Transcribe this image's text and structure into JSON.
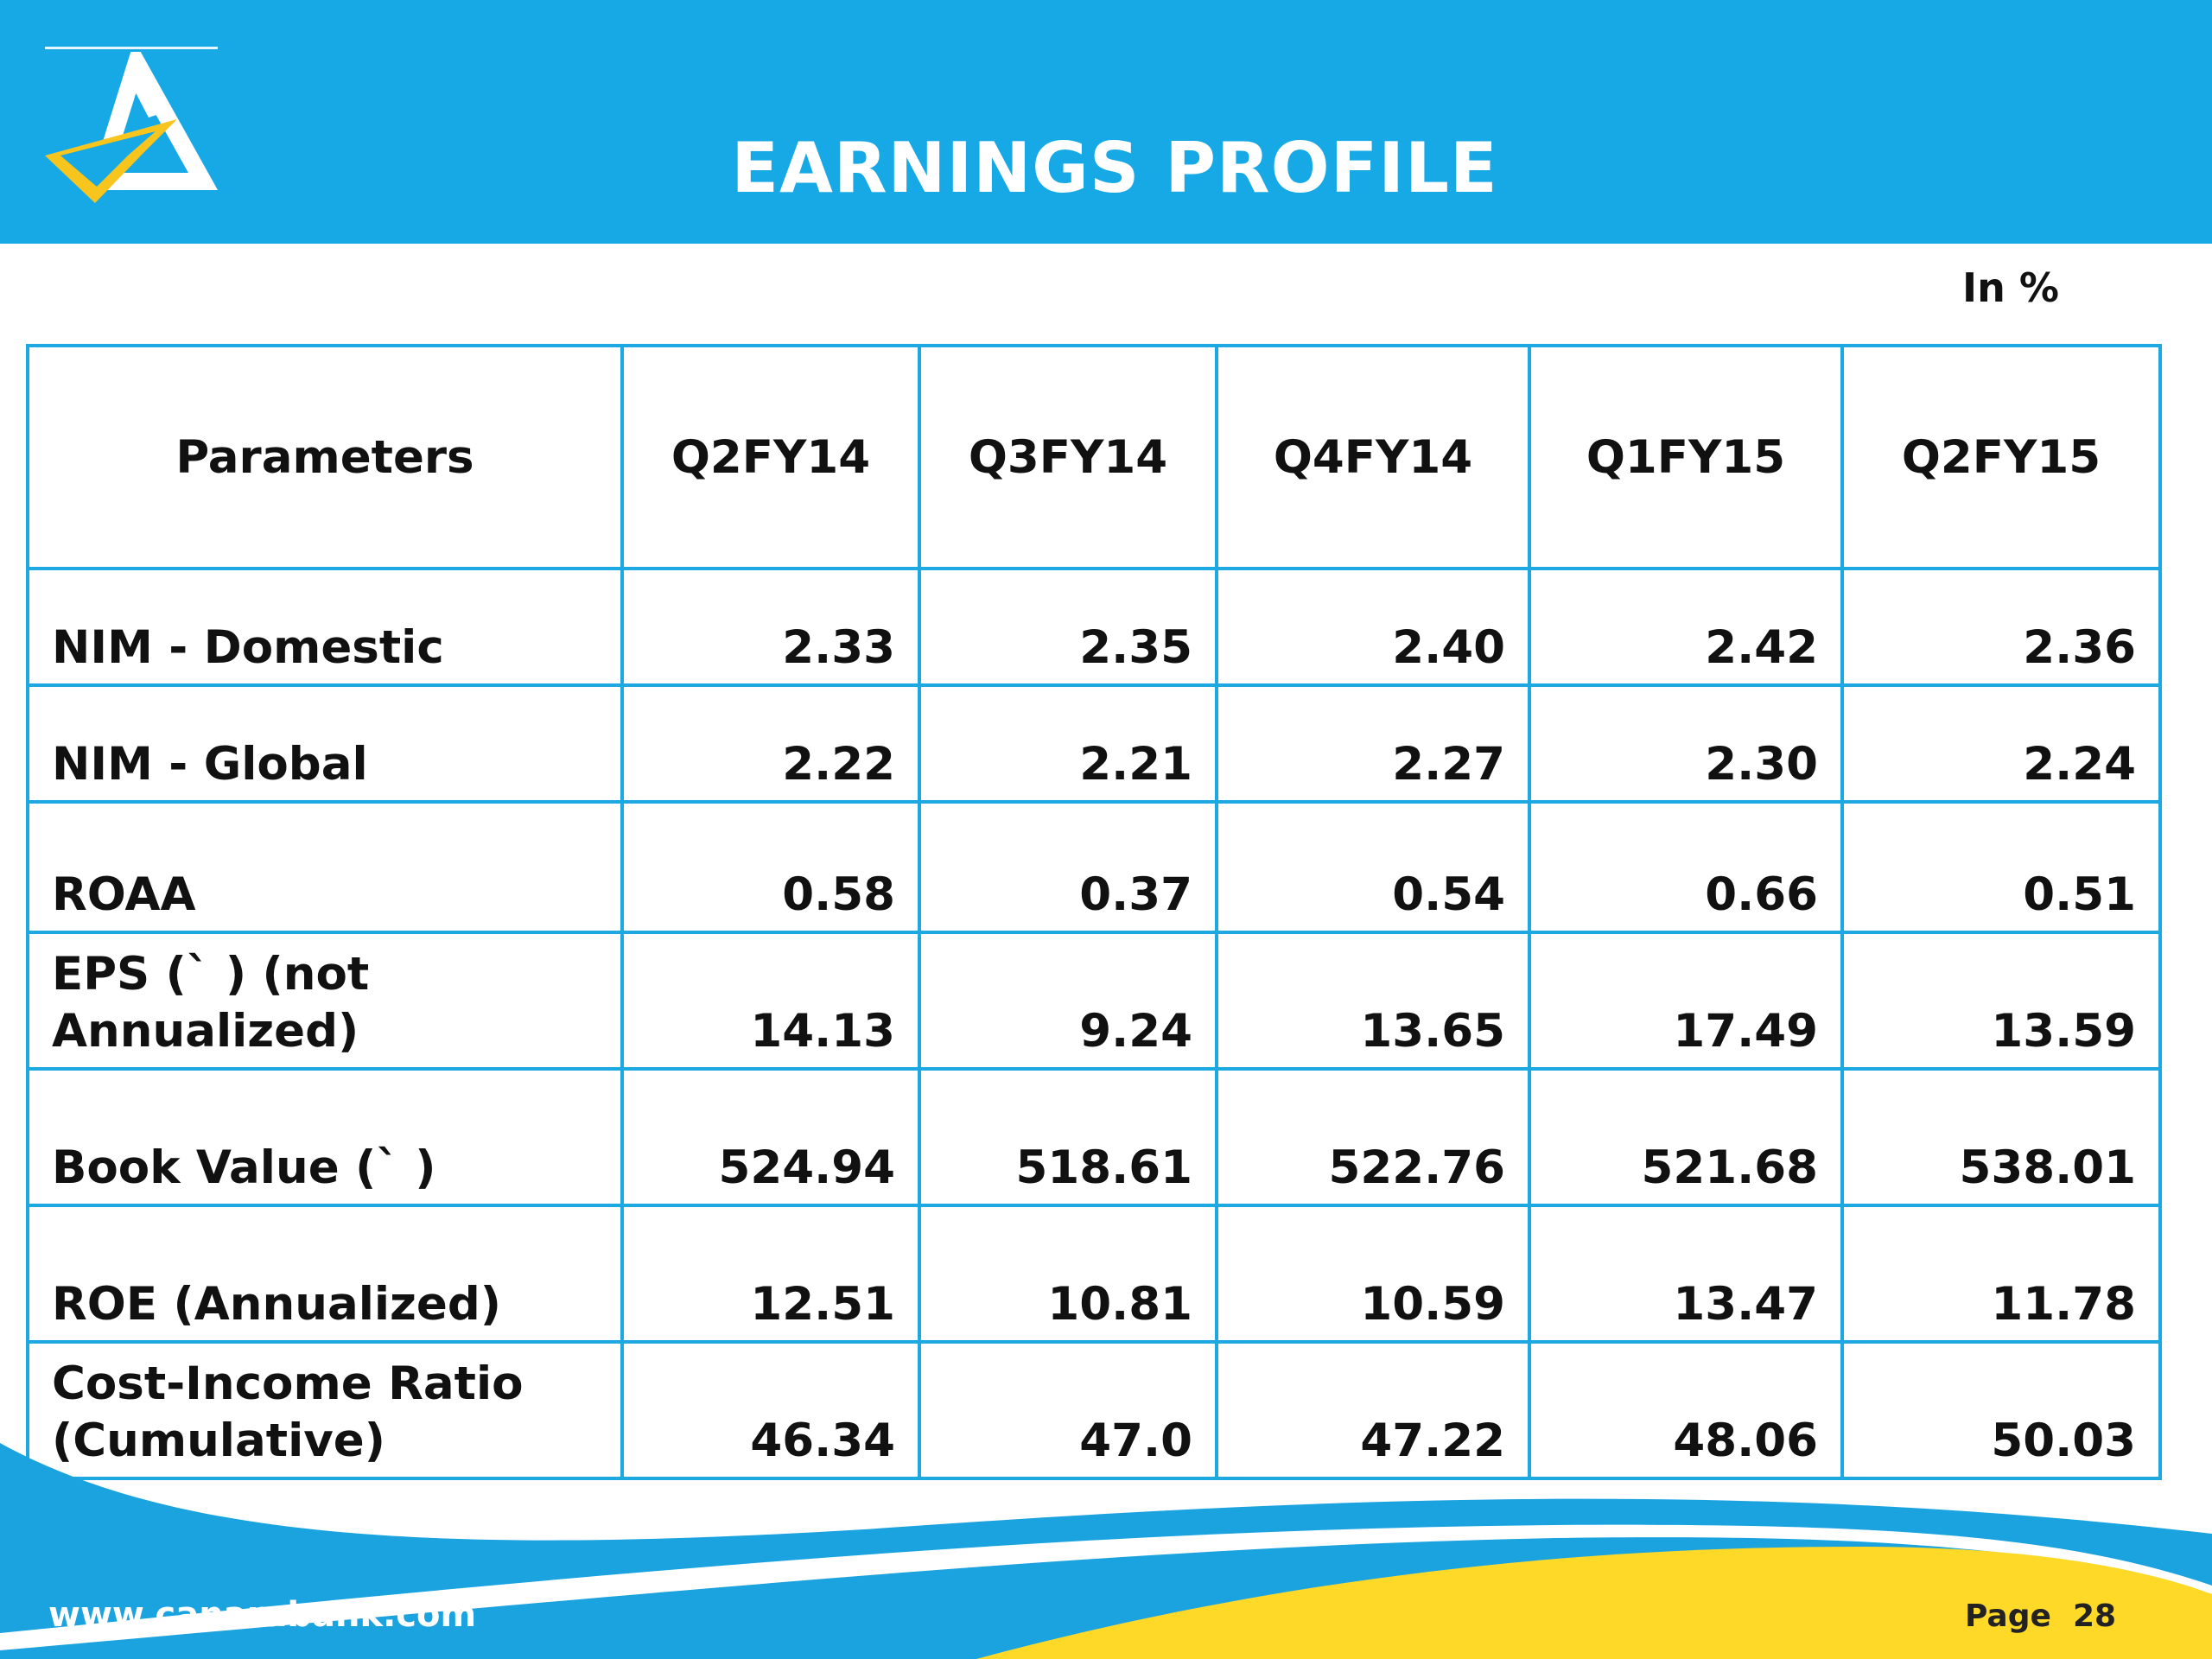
{
  "header": {
    "title": "EARNINGS PROFILE"
  },
  "unit_label": "In %",
  "table": {
    "columns": [
      "Parameters",
      "Q2FY14",
      "Q3FY14",
      "Q4FY14",
      "Q1FY15",
      "Q2FY15"
    ],
    "rows": [
      {
        "label_lines": [
          "NIM - Domestic"
        ],
        "values": [
          "2.33",
          "2.35",
          "2.40",
          "2.42",
          "2.36"
        ]
      },
      {
        "label_lines": [
          "NIM - Global"
        ],
        "values": [
          "2.22",
          "2.21",
          "2.27",
          "2.30",
          "2.24"
        ]
      },
      {
        "label_lines": [
          "ROAA"
        ],
        "values": [
          "0.58",
          "0.37",
          "0.54",
          "0.66",
          "0.51"
        ]
      },
      {
        "label_lines": [
          "EPS (` ) (not",
          "Annualized)"
        ],
        "values": [
          "14.13",
          "9.24",
          "13.65",
          "17.49",
          "13.59"
        ]
      },
      {
        "label_lines": [
          "Book Value (` )"
        ],
        "values": [
          "524.94",
          "518.61",
          "522.76",
          "521.68",
          "538.01"
        ]
      },
      {
        "label_lines": [
          "ROE (Annualized)"
        ],
        "values": [
          "12.51",
          "10.81",
          "10.59",
          "13.47",
          "11.78"
        ]
      },
      {
        "label_lines": [
          "Cost-Income Ratio",
          "(Cumulative)"
        ],
        "values": [
          "46.34",
          "47.0",
          "47.22",
          "48.06",
          "50.03"
        ]
      }
    ]
  },
  "footer": {
    "url": "www.canarabank.com",
    "page_label": "Page",
    "page_number": "28"
  },
  "colors": {
    "header_blue": "#17a9e6",
    "table_border": "#1da8e2",
    "footer_blue": "#1ba3e0",
    "footer_yellow": "#ffd928"
  },
  "logo": {
    "icon": "canara-bank-triangle-logo"
  }
}
